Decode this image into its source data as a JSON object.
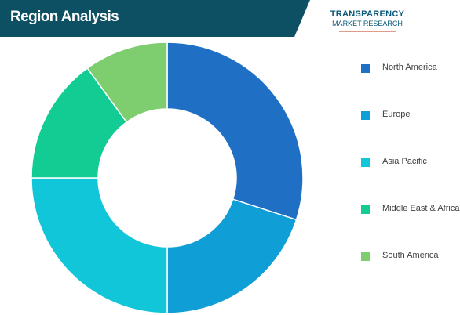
{
  "header": {
    "title": "Region Analysis",
    "bar_color": "#0d4f63",
    "logo_line1": "TRANSPARENCY",
    "logo_line2": "MARKET RESEARCH"
  },
  "chart_data": {
    "type": "pie",
    "donut": true,
    "title": "",
    "categories": [
      "North America",
      "Europe",
      "Asia Pacific",
      "Middle East & Africa",
      "South America"
    ],
    "values": [
      30,
      20,
      25,
      15,
      10
    ],
    "colors": [
      "#1f6fc5",
      "#0f9ed5",
      "#11c6d8",
      "#12cc93",
      "#7ecd6e"
    ],
    "start": "12 o'clock",
    "direction": "clockwise",
    "legend_position": "right"
  }
}
